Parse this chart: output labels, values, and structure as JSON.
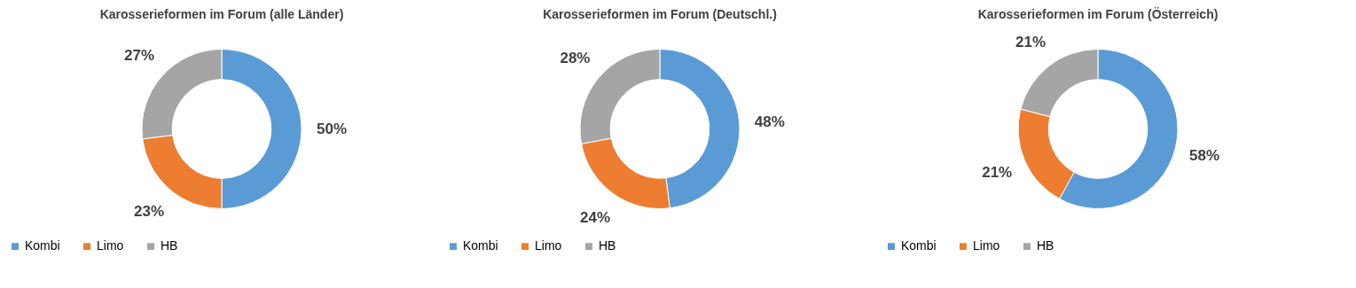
{
  "chart_data": [
    {
      "type": "donut",
      "title": "Karosserieformen im Forum (alle Länder)",
      "categories": [
        "Kombi",
        "Limo",
        "HB"
      ],
      "values": [
        50,
        23,
        27
      ],
      "colors": [
        "#5b9bd5",
        "#ed7d31",
        "#a5a5a5"
      ],
      "value_labels": [
        "50%",
        "23%",
        "27%"
      ],
      "legend": "bottom"
    },
    {
      "type": "donut",
      "title": "Karosserieformen im Forum (Deutschl.)",
      "categories": [
        "Kombi",
        "Limo",
        "HB"
      ],
      "values": [
        48,
        24,
        28
      ],
      "colors": [
        "#5b9bd5",
        "#ed7d31",
        "#a5a5a5"
      ],
      "value_labels": [
        "48%",
        "24%",
        "28%"
      ],
      "legend": "bottom"
    },
    {
      "type": "donut",
      "title": "Karosserieformen im Forum (Österreich)",
      "categories": [
        "Kombi",
        "Limo",
        "HB"
      ],
      "values": [
        58,
        21,
        21
      ],
      "colors": [
        "#5b9bd5",
        "#ed7d31",
        "#a5a5a5"
      ],
      "value_labels": [
        "58%",
        "21%",
        "21%"
      ],
      "legend": "bottom"
    }
  ]
}
